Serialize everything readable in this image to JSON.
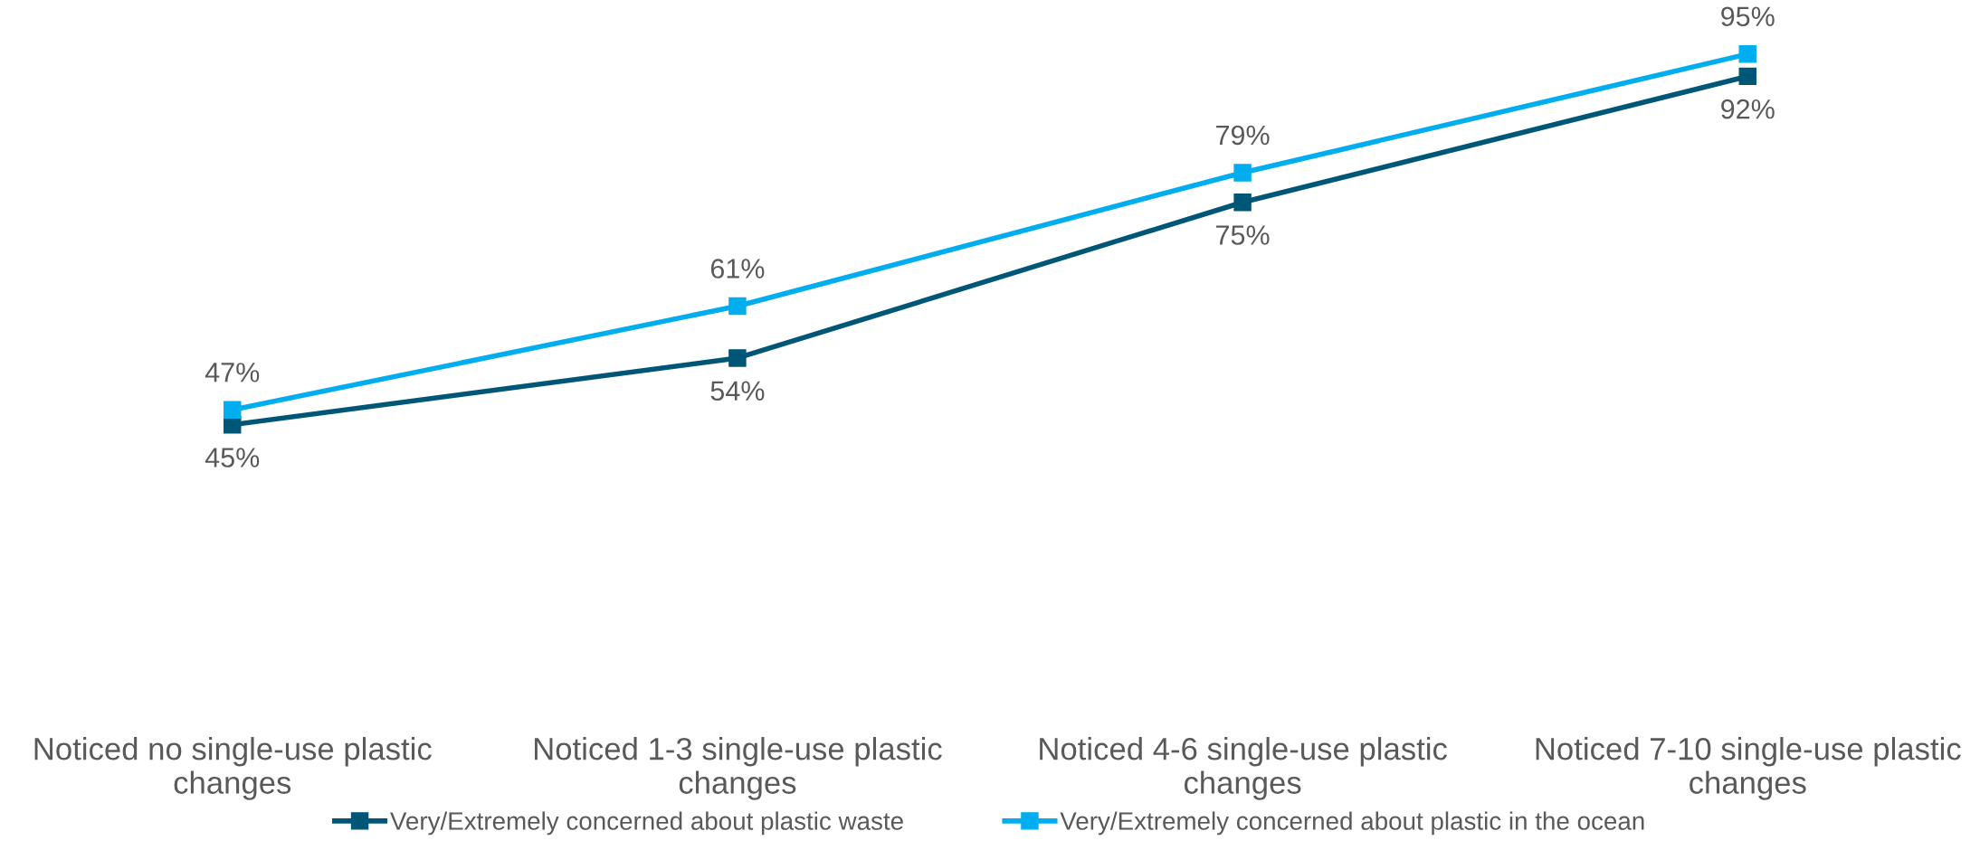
{
  "chart_data": {
    "type": "line",
    "categories": [
      "Noticed no single-use plastic changes",
      "Noticed 1-3 single-use plastic changes",
      "Noticed 4-6 single-use plastic changes",
      "Noticed 7-10 single-use plastic changes"
    ],
    "series": [
      {
        "name": "Very/Extremely concerned about plastic waste",
        "color": "#005677",
        "values": [
          45,
          54,
          75,
          92
        ],
        "value_labels": [
          "45%",
          "54%",
          "75%",
          "92%"
        ]
      },
      {
        "name": "Very/Extremely concerned about plastic in the ocean",
        "color": "#00aeef",
        "values": [
          47,
          61,
          79,
          95
        ],
        "value_labels": [
          "47%",
          "61%",
          "79%",
          "95%"
        ]
      }
    ],
    "marker": "square",
    "line_style": "solid",
    "grid": false,
    "legend": "bottom",
    "tick_labels": "x"
  }
}
